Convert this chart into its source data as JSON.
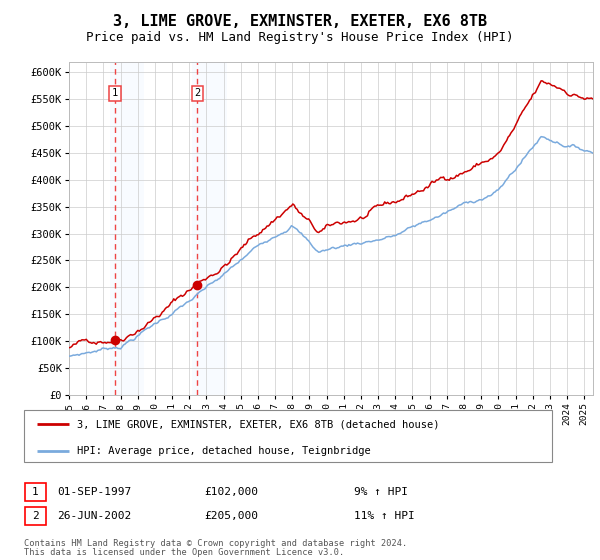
{
  "title": "3, LIME GROVE, EXMINSTER, EXETER, EX6 8TB",
  "subtitle": "Price paid vs. HM Land Registry's House Price Index (HPI)",
  "legend_line1": "3, LIME GROVE, EXMINSTER, EXETER, EX6 8TB (detached house)",
  "legend_line2": "HPI: Average price, detached house, Teignbridge",
  "footer1": "Contains HM Land Registry data © Crown copyright and database right 2024.",
  "footer2": "This data is licensed under the Open Government Licence v3.0.",
  "transaction1_date": "01-SEP-1997",
  "transaction1_price": "£102,000",
  "transaction1_hpi": "9% ↑ HPI",
  "transaction2_date": "26-JUN-2002",
  "transaction2_price": "£205,000",
  "transaction2_hpi": "11% ↑ HPI",
  "transaction1_x": 1997.67,
  "transaction1_y": 102000,
  "transaction2_x": 2002.48,
  "transaction2_y": 205000,
  "xmin": 1995,
  "xmax": 2025.5,
  "ymin": 0,
  "ymax": 620000,
  "yticks": [
    0,
    50000,
    100000,
    150000,
    200000,
    250000,
    300000,
    350000,
    400000,
    450000,
    500000,
    550000,
    600000
  ],
  "ytick_labels": [
    "£0",
    "£50K",
    "£100K",
    "£150K",
    "£200K",
    "£250K",
    "£300K",
    "£350K",
    "£400K",
    "£450K",
    "£500K",
    "£550K",
    "£600K"
  ],
  "hpi_color": "#7aaadd",
  "price_color": "#cc0000",
  "highlight_color": "#ddeeff",
  "vline_color": "#ee4444",
  "marker_color": "#cc0000",
  "grid_color": "#cccccc",
  "background_color": "#ffffff",
  "plot_bg_color": "#ffffff",
  "title_fontsize": 11,
  "subtitle_fontsize": 9
}
